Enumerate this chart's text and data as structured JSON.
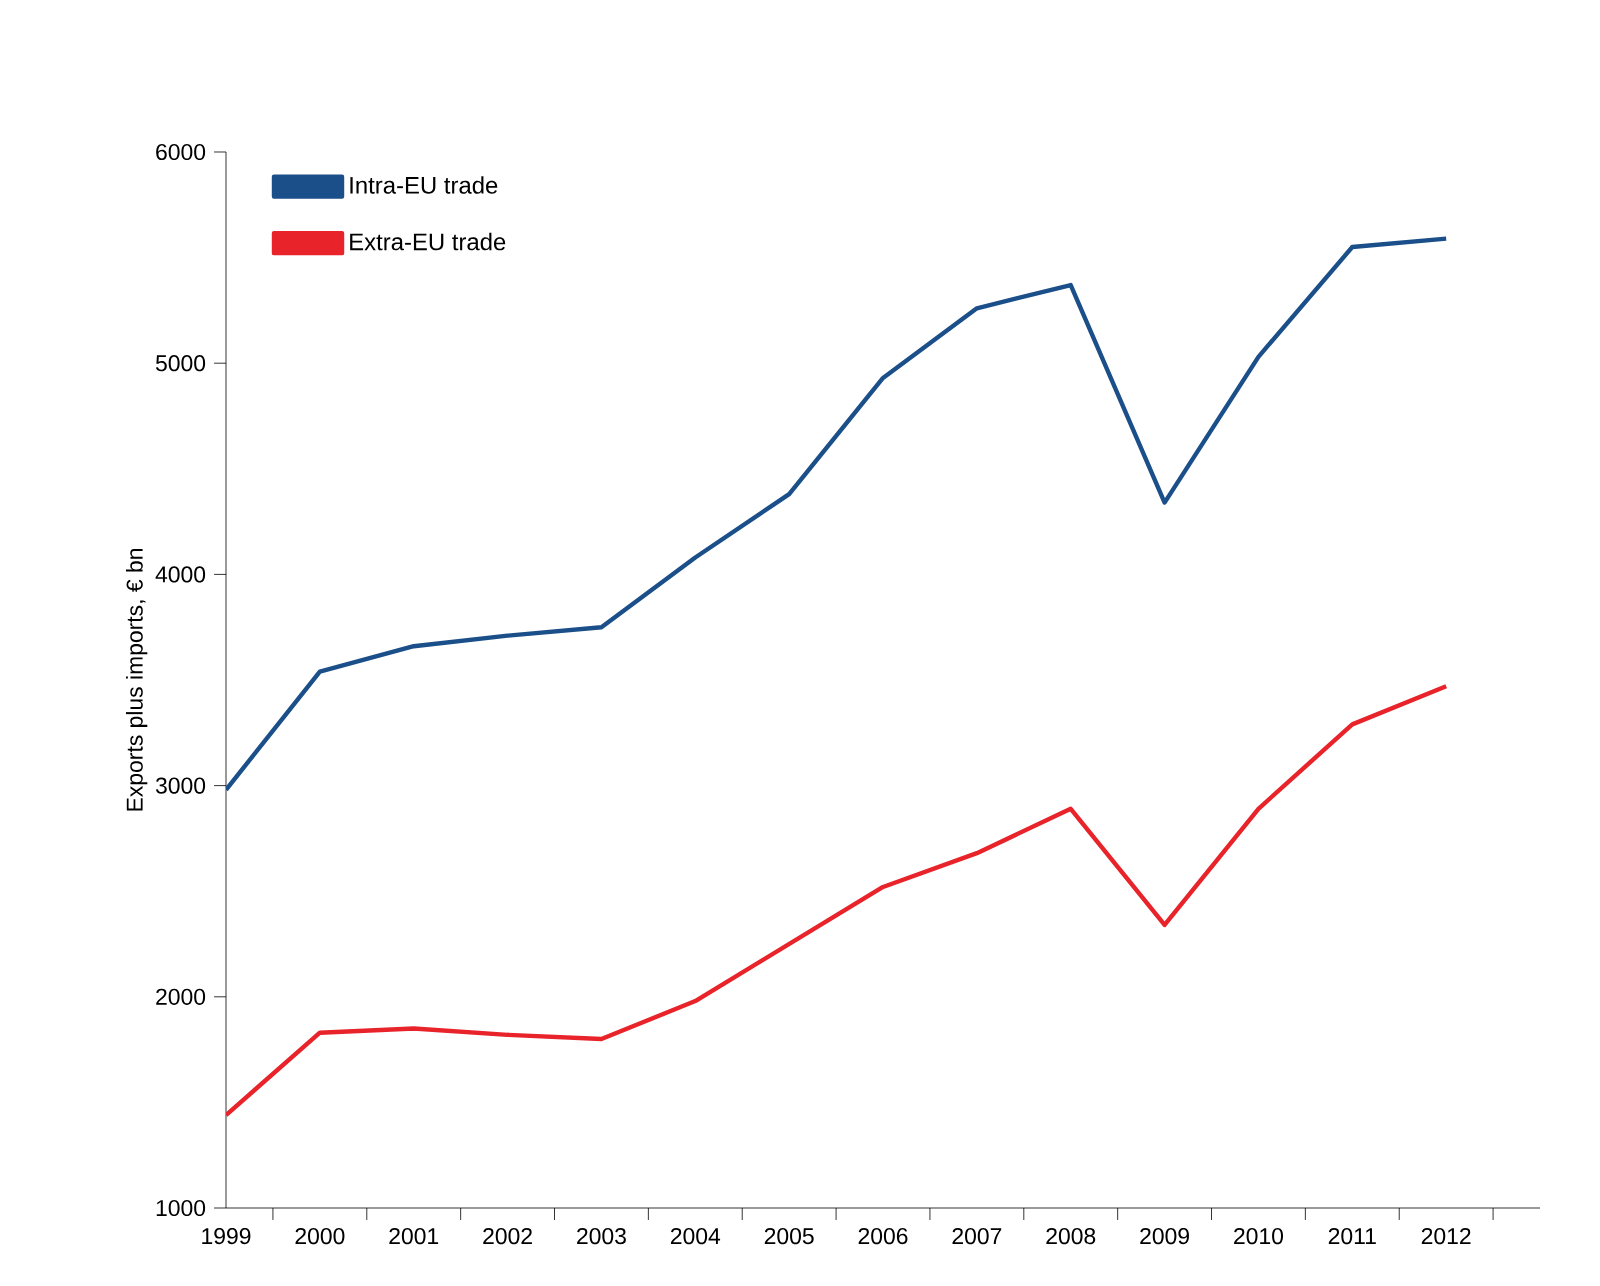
{
  "chart_data": {
    "type": "line",
    "ylabel": "Exports plus imports, € bn",
    "categories": [
      "1999",
      "2000",
      "2001",
      "2002",
      "2003",
      "2004",
      "2005",
      "2006",
      "2007",
      "2008",
      "2009",
      "2010",
      "2011",
      "2012"
    ],
    "series": [
      {
        "name": "Intra-EU trade",
        "color": "#1b4f8a",
        "values": [
          2980,
          3540,
          3660,
          3710,
          3750,
          4080,
          4380,
          4930,
          5260,
          5370,
          4340,
          5030,
          5550,
          5590
        ]
      },
      {
        "name": "Extra-EU trade",
        "color": "#e8232a",
        "values": [
          1440,
          1830,
          1850,
          1820,
          1800,
          1980,
          2250,
          2520,
          2680,
          2890,
          2340,
          2890,
          3290,
          3470
        ]
      }
    ],
    "ylim": [
      1000,
      6000
    ],
    "yticks": [
      1000,
      2000,
      3000,
      4000,
      5000,
      6000
    ],
    "grid": false,
    "legend": "top left",
    "marker": "none",
    "line_style": "solid"
  }
}
